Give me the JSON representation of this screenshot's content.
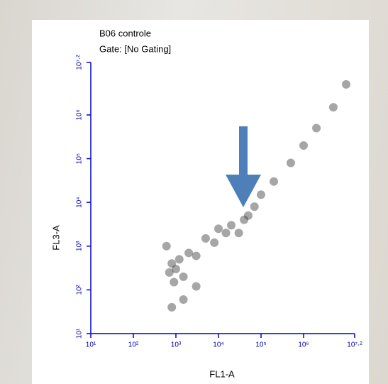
{
  "chart_data": {
    "type": "scatter",
    "title": "B06 controle",
    "subtitle": "Gate: [No Gating]",
    "x_label": "FL1-A",
    "y_label": "FL3-A",
    "log_x": true,
    "log_y": true,
    "axis_color": "#0000cc",
    "xlim": [
      10,
      15848932
    ],
    "ylim": [
      10,
      15848932
    ],
    "xticks": [
      {
        "value": 10,
        "label": "10¹"
      },
      {
        "value": 100,
        "label": "10²"
      },
      {
        "value": 1000,
        "label": "10³"
      },
      {
        "value": 10000,
        "label": "10⁴"
      },
      {
        "value": 100000,
        "label": "10⁵"
      },
      {
        "value": 1000000,
        "label": "10⁶"
      },
      {
        "value": 15848932,
        "label": "10⁷·²"
      }
    ],
    "yticks": [
      {
        "value": 10,
        "label": "10¹"
      },
      {
        "value": 100,
        "label": "10²"
      },
      {
        "value": 1000,
        "label": "10³"
      },
      {
        "value": 10000,
        "label": "10⁴"
      },
      {
        "value": 100000,
        "label": "10⁵"
      },
      {
        "value": 1000000,
        "label": "10⁶"
      },
      {
        "value": 15848932,
        "label": "10⁷·²"
      }
    ],
    "color": "#3a3a3a",
    "x": [
      700,
      800,
      900,
      1000,
      1200,
      1500,
      2000,
      3000,
      5000,
      8000,
      10000,
      15000,
      20000,
      30000,
      40000,
      50000,
      70000,
      100000,
      200000,
      500000,
      1000000,
      2000000,
      5000000,
      10000000,
      800,
      1500,
      3000,
      600
    ],
    "y": [
      250,
      400,
      150,
      300,
      500,
      200,
      700,
      600,
      1500,
      1200,
      2500,
      2000,
      3000,
      2000,
      4000,
      5000,
      8000,
      15000,
      30000,
      80000,
      200000,
      500000,
      1500000,
      5000000,
      40,
      60,
      120,
      1000
    ]
  }
}
